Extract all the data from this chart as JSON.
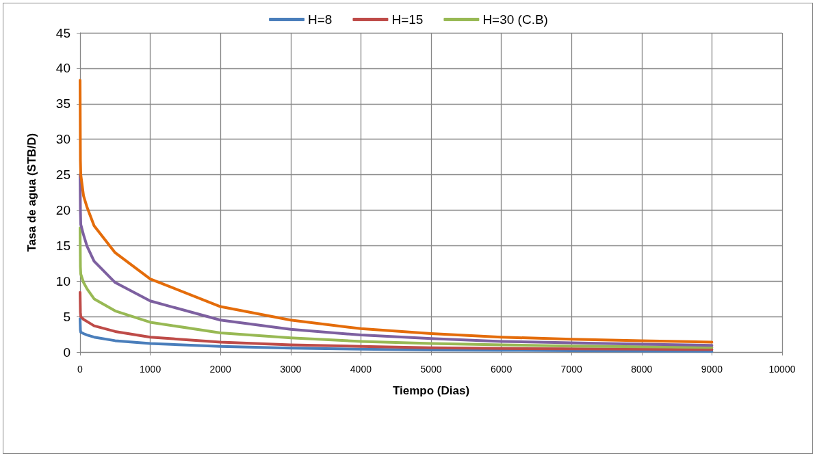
{
  "chart_data": {
    "type": "line",
    "xlabel": "Tiempo (Dias)",
    "ylabel": "Tasa de agua (STB/D)",
    "x": [
      0,
      5,
      10,
      50,
      100,
      200,
      500,
      1000,
      2000,
      3000,
      4000,
      5000,
      6000,
      7000,
      8000,
      9000
    ],
    "series": [
      {
        "name": "H=8",
        "color": "#4a7ebb",
        "values": [
          4.7,
          3.1,
          2.8,
          2.6,
          2.4,
          2.1,
          1.6,
          1.2,
          0.8,
          0.55,
          0.4,
          0.3,
          0.25,
          0.2,
          0.15,
          0.1
        ]
      },
      {
        "name": "H=15",
        "color": "#be4b48",
        "values": [
          8.4,
          5.6,
          5.0,
          4.6,
          4.3,
          3.7,
          2.9,
          2.1,
          1.4,
          1.0,
          0.8,
          0.6,
          0.5,
          0.45,
          0.4,
          0.35
        ]
      },
      {
        "name": "H=30 (C.B)",
        "color": "#98b954",
        "values": [
          17.5,
          12,
          11,
          9.8,
          8.9,
          7.5,
          5.8,
          4.2,
          2.7,
          2.0,
          1.5,
          1.2,
          1.0,
          0.85,
          0.75,
          0.65
        ]
      },
      {
        "color": "#7d60a0",
        "values": [
          25,
          20,
          18,
          16.5,
          14.9,
          12.8,
          9.8,
          7.2,
          4.5,
          3.2,
          2.4,
          1.9,
          1.5,
          1.3,
          1.1,
          0.95
        ]
      },
      {
        "color": "#e46c0a",
        "values": [
          38.3,
          27,
          25,
          22,
          20.4,
          17.8,
          14,
          10.3,
          6.4,
          4.5,
          3.3,
          2.6,
          2.1,
          1.8,
          1.6,
          1.4
        ]
      }
    ],
    "xlim": [
      0,
      10000
    ],
    "xticks": [
      0,
      1000,
      2000,
      3000,
      4000,
      5000,
      6000,
      7000,
      8000,
      9000,
      10000
    ],
    "ylim": [
      0,
      45
    ],
    "yticks": [
      0,
      5,
      10,
      15,
      20,
      25,
      30,
      35,
      40,
      45
    ],
    "grid": true,
    "legend": "top",
    "marker": "none",
    "line_style": "solid"
  }
}
